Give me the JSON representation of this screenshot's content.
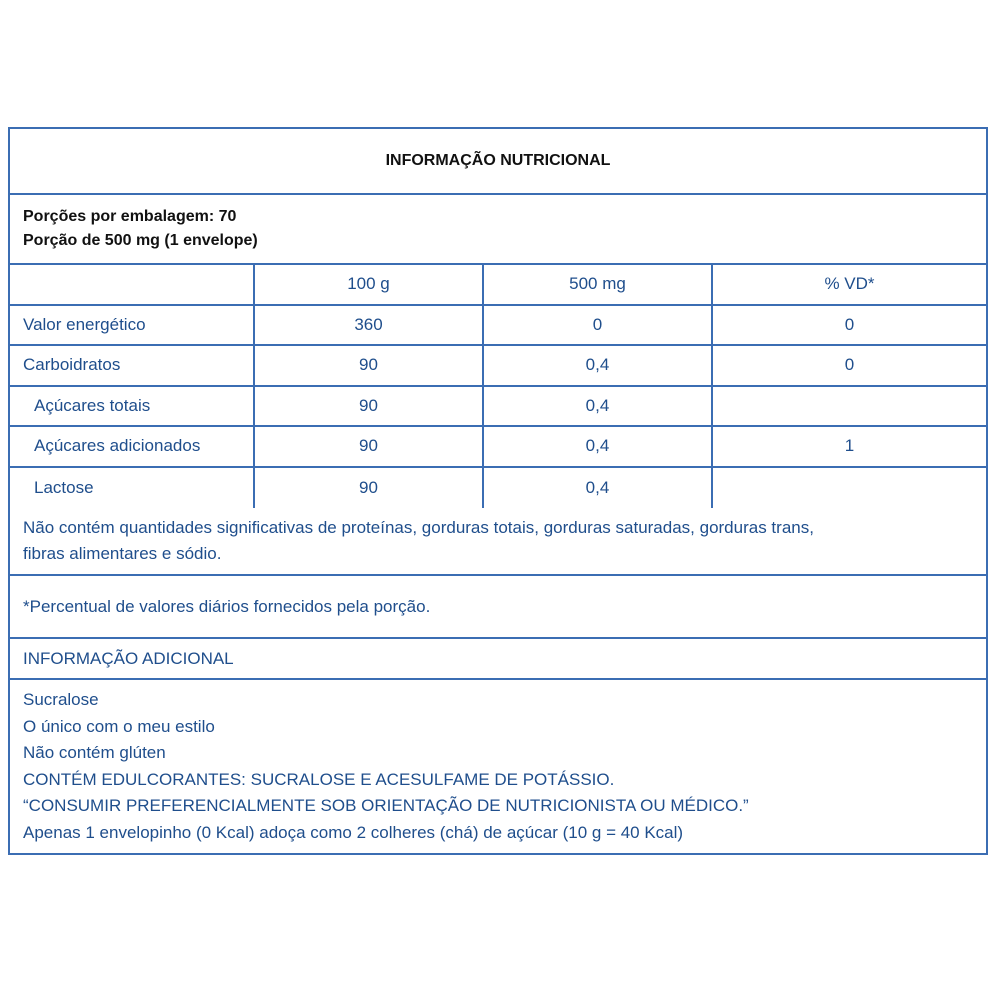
{
  "title": "INFORMAÇÃO NUTRICIONAL",
  "servings": {
    "per_package": "Porções por embalagem: 70",
    "portion": "Porção de 500 mg (1 envelope)"
  },
  "columns": [
    "",
    "100 g",
    "500 mg",
    "% VD*"
  ],
  "rows": [
    {
      "label": "Valor energético",
      "per100": "360",
      "portion": "0",
      "vd": "0",
      "indent": false
    },
    {
      "label": "Carboidratos",
      "per100": "90",
      "portion": "0,4",
      "vd": "0",
      "indent": false
    },
    {
      "label": "Açúcares totais",
      "per100": "90",
      "portion": "0,4",
      "vd": "",
      "indent": true
    },
    {
      "label": "Açúcares adicionados",
      "per100": "90",
      "portion": "0,4",
      "vd": "1",
      "indent": true
    },
    {
      "label": "Lactose",
      "per100": "90",
      "portion": "0,4",
      "vd": "",
      "indent": true
    }
  ],
  "note_lines": [
    "Não contém quantidades significativas de proteínas, gorduras totais, gorduras saturadas, gorduras trans,",
    "fibras alimentares e sódio."
  ],
  "footnote": "*Percentual de valores diários fornecidos pela porção.",
  "additional": {
    "heading": "INFORMAÇÃO ADICIONAL",
    "lines": [
      "Sucralose",
      "O único com o meu estilo",
      "Não contém glúten",
      "CONTÉM EDULCORANTES: SUCRALOSE E ACESULFAME DE POTÁSSIO.",
      "“CONSUMIR PREFERENCIALMENTE SOB ORIENTAÇÃO DE NUTRICIONISTA OU MÉDICO.”",
      "Apenas 1 envelopinho (0 Kcal) adoça como 2 colheres (chá) de açúcar (10 g = 40 Kcal)"
    ]
  },
  "colors": {
    "border": "#3b6db3",
    "text": "#1f4e8c",
    "bold_text": "#111111"
  }
}
